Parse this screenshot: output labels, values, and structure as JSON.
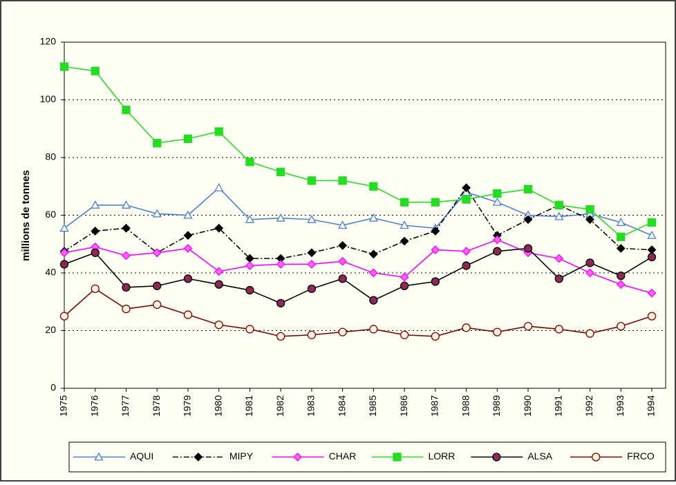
{
  "chart_data": {
    "type": "line",
    "y_label": "millions de tonnes",
    "categories": [
      "1975",
      "1976",
      "1977",
      "1978",
      "1979",
      "1980",
      "1981",
      "1982",
      "1983",
      "1984",
      "1985",
      "1986",
      "1987",
      "1988",
      "1989",
      "1990",
      "1991",
      "1992",
      "1993",
      "1994"
    ],
    "ylim": [
      0,
      120
    ],
    "yticks": [
      0,
      20,
      40,
      60,
      80,
      100,
      120
    ],
    "grid": true,
    "legend": "bottom",
    "series": [
      {
        "name": "AQUI",
        "color": "#4a7fd6",
        "marker": "triangle",
        "marker_fill": "#ffffff",
        "dash": "solid",
        "values": [
          55.5,
          63.5,
          63.5,
          60.5,
          60,
          69.5,
          58.5,
          59,
          58.5,
          56.5,
          59,
          56.5,
          55.5,
          68,
          64.5,
          60,
          59.5,
          60.5,
          57.5,
          53
        ]
      },
      {
        "name": "MIPY",
        "color": "#000000",
        "marker": "diamond",
        "marker_fill": "#000000",
        "dash": "dashdot",
        "values": [
          47.5,
          54.5,
          55.5,
          47,
          53,
          55.5,
          45,
          45,
          47,
          49.5,
          46.5,
          51,
          54.5,
          69.5,
          53,
          58.5,
          63.5,
          58.5,
          48.5,
          48
        ]
      },
      {
        "name": "CHAR",
        "color": "#ff00ff",
        "marker": "diamond",
        "marker_fill": "#ff66ff",
        "dash": "solid",
        "values": [
          47,
          49,
          46,
          47,
          48.5,
          40.5,
          42.5,
          43,
          43,
          44,
          40,
          38.5,
          48,
          47.5,
          51.5,
          47,
          45,
          40,
          36,
          33
        ]
      },
      {
        "name": "LORR",
        "color": "#22dd22",
        "marker": "square",
        "marker_fill": "#22dd22",
        "dash": "solid",
        "values": [
          111.5,
          110,
          96.5,
          85,
          86.5,
          89,
          78.5,
          75,
          72,
          72,
          70,
          64.5,
          64.5,
          65.5,
          67.5,
          69,
          63.5,
          62,
          52.5,
          57.5
        ]
      },
      {
        "name": "ALSA",
        "color": "#000000",
        "marker": "circle",
        "marker_fill": "#8b2a55",
        "dash": "solid",
        "values": [
          43,
          47,
          35,
          35.5,
          38,
          36,
          34,
          29.5,
          34.5,
          38,
          30.5,
          35.5,
          37,
          42.5,
          47.5,
          48.5,
          38,
          43.5,
          39,
          45.5
        ]
      },
      {
        "name": "FRCO",
        "color": "#800000",
        "marker": "circle",
        "marker_fill": "#fff3e0",
        "dash": "solid",
        "values": [
          25,
          34.5,
          27.5,
          29,
          25.5,
          22,
          20.5,
          18,
          18.5,
          19.5,
          20.5,
          18.5,
          18,
          21,
          19.5,
          21.5,
          20.5,
          19,
          21.5,
          25
        ]
      }
    ]
  }
}
